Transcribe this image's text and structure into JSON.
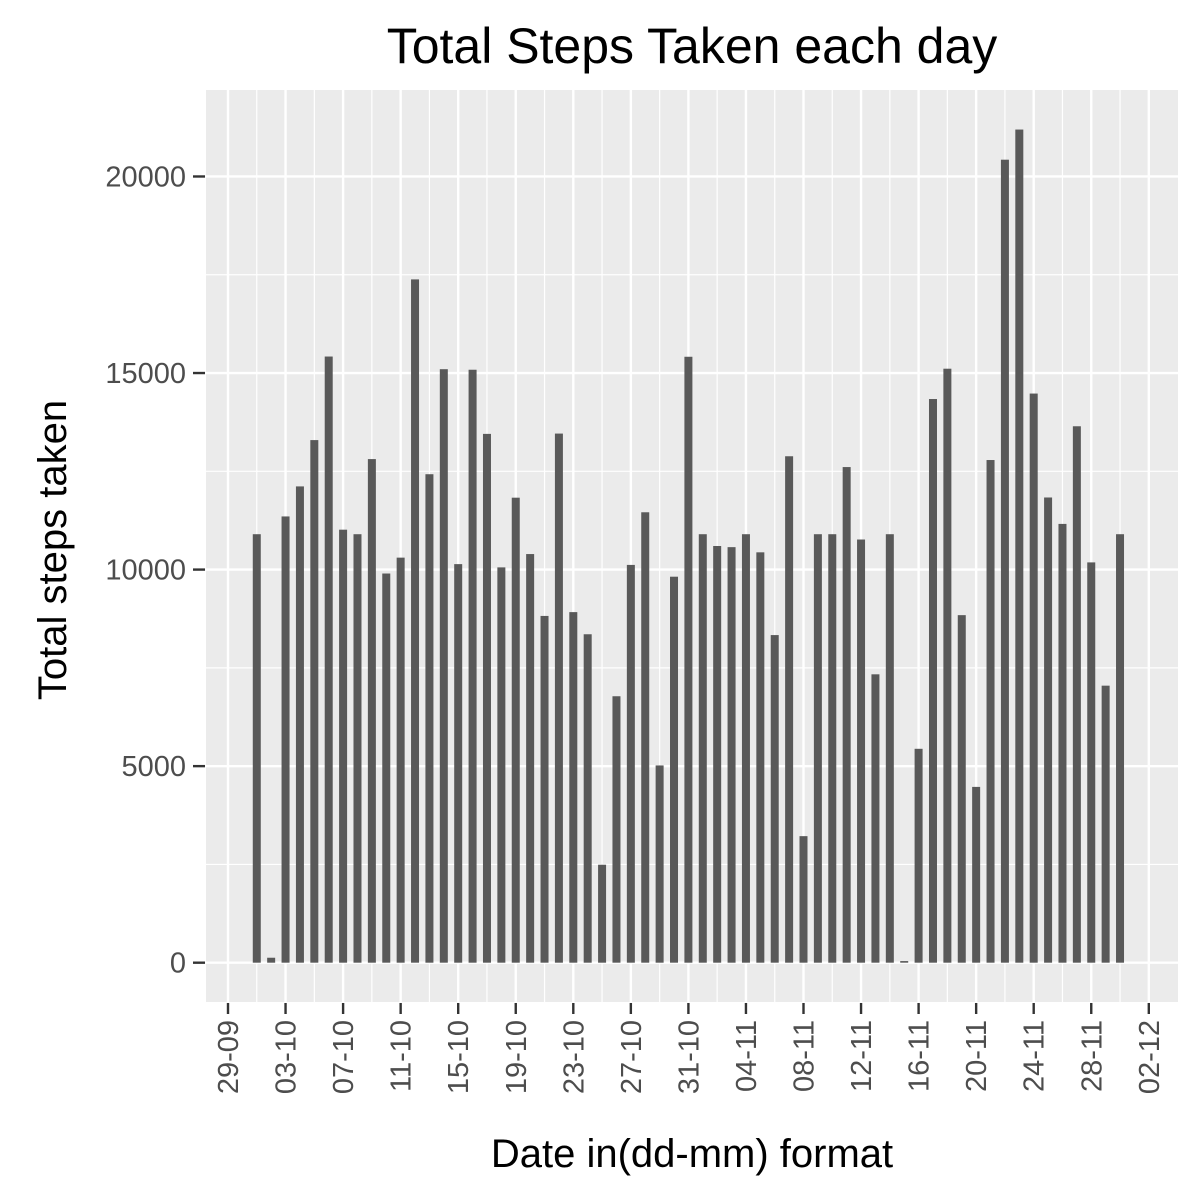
{
  "chart_data": {
    "type": "bar",
    "title": "Total Steps Taken each day",
    "xlabel": "Date in(dd-mm) format",
    "ylabel": "Total steps taken",
    "x_tick_labels": [
      "29-09",
      "03-10",
      "07-10",
      "11-10",
      "15-10",
      "19-10",
      "23-10",
      "27-10",
      "31-10",
      "04-11",
      "08-11",
      "12-11",
      "16-11",
      "20-11",
      "24-11",
      "28-11",
      "02-12"
    ],
    "y_tick_labels": [
      "0",
      "5000",
      "10000",
      "15000",
      "20000"
    ],
    "y_ticks": [
      0,
      5000,
      10000,
      15000,
      20000
    ],
    "ylim": [
      -1000,
      22200
    ],
    "xlim": [
      "2012-09-29",
      "2012-12-02"
    ],
    "grid": true,
    "panel_background": "#ebebeb",
    "bar_color": "#595959",
    "categories": [
      "2012-10-01",
      "2012-10-02",
      "2012-10-03",
      "2012-10-04",
      "2012-10-05",
      "2012-10-06",
      "2012-10-07",
      "2012-10-08",
      "2012-10-09",
      "2012-10-10",
      "2012-10-11",
      "2012-10-12",
      "2012-10-13",
      "2012-10-14",
      "2012-10-15",
      "2012-10-16",
      "2012-10-17",
      "2012-10-18",
      "2012-10-19",
      "2012-10-20",
      "2012-10-21",
      "2012-10-22",
      "2012-10-23",
      "2012-10-24",
      "2012-10-25",
      "2012-10-26",
      "2012-10-27",
      "2012-10-28",
      "2012-10-29",
      "2012-10-30",
      "2012-10-31",
      "2012-11-01",
      "2012-11-02",
      "2012-11-03",
      "2012-11-04",
      "2012-11-05",
      "2012-11-06",
      "2012-11-07",
      "2012-11-08",
      "2012-11-09",
      "2012-11-10",
      "2012-11-11",
      "2012-11-12",
      "2012-11-13",
      "2012-11-14",
      "2012-11-15",
      "2012-11-16",
      "2012-11-17",
      "2012-11-18",
      "2012-11-19",
      "2012-11-20",
      "2012-11-21",
      "2012-11-22",
      "2012-11-23",
      "2012-11-24",
      "2012-11-25",
      "2012-11-26",
      "2012-11-27",
      "2012-11-28",
      "2012-11-29",
      "2012-11-30"
    ],
    "values": [
      10900,
      126,
      11352,
      12116,
      13294,
      15420,
      11015,
      10900,
      12811,
      9900,
      10304,
      17382,
      12426,
      15098,
      10139,
      15084,
      13452,
      10056,
      11829,
      10395,
      8821,
      13460,
      8918,
      8355,
      2492,
      6778,
      10119,
      11458,
      5018,
      9819,
      15414,
      10900,
      10600,
      10571,
      10900,
      10439,
      8334,
      12883,
      3219,
      10900,
      10900,
      12608,
      10765,
      7336,
      10900,
      41,
      5441,
      14339,
      15110,
      8841,
      4472,
      12787,
      20427,
      21194,
      14478,
      11834,
      11162,
      13646,
      10183,
      7047,
      10900
    ]
  }
}
